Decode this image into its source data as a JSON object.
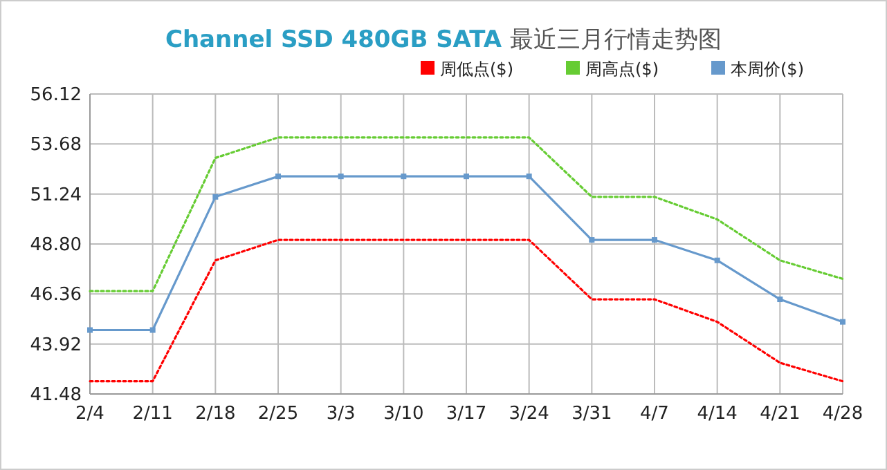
{
  "chart_data": {
    "type": "line",
    "title": "Channel SSD 480GB SATA 最近三月行情走势图",
    "categories": [
      "2/4",
      "2/11",
      "2/18",
      "2/25",
      "3/3",
      "3/10",
      "3/17",
      "3/24",
      "3/31",
      "4/7",
      "4/14",
      "4/21",
      "4/28"
    ],
    "series": [
      {
        "name": "周低点($)",
        "color": "#ff0000",
        "line_style": "dotted",
        "marker": "none",
        "values": [
          42.1,
          42.1,
          48.0,
          49.0,
          49.0,
          49.0,
          49.0,
          49.0,
          46.1,
          46.1,
          45.0,
          43.0,
          42.1
        ]
      },
      {
        "name": "周高点($)",
        "color": "#66cc33",
        "line_style": "dotted",
        "marker": "none",
        "values": [
          46.5,
          46.5,
          53.0,
          54.0,
          54.0,
          54.0,
          54.0,
          54.0,
          51.1,
          51.1,
          50.0,
          48.0,
          47.1
        ]
      },
      {
        "name": "本周价($)",
        "color": "#6699cc",
        "line_style": "solid",
        "marker": "square",
        "values": [
          44.6,
          44.6,
          51.1,
          52.1,
          52.1,
          52.1,
          52.1,
          52.1,
          49.0,
          49.0,
          48.0,
          46.1,
          45.0
        ]
      }
    ],
    "ylim": [
      41.48,
      56.12
    ],
    "yticks": [
      {
        "value": 41.48,
        "label": "41.48"
      },
      {
        "value": 43.92,
        "label": "43.92"
      },
      {
        "value": 46.36,
        "label": "46.36"
      },
      {
        "value": 48.8,
        "label": "48.80"
      },
      {
        "value": 51.24,
        "label": "51.24"
      },
      {
        "value": 53.68,
        "label": "53.68"
      },
      {
        "value": 56.12,
        "label": "56.12"
      }
    ],
    "grid": true,
    "legend": "top right"
  }
}
